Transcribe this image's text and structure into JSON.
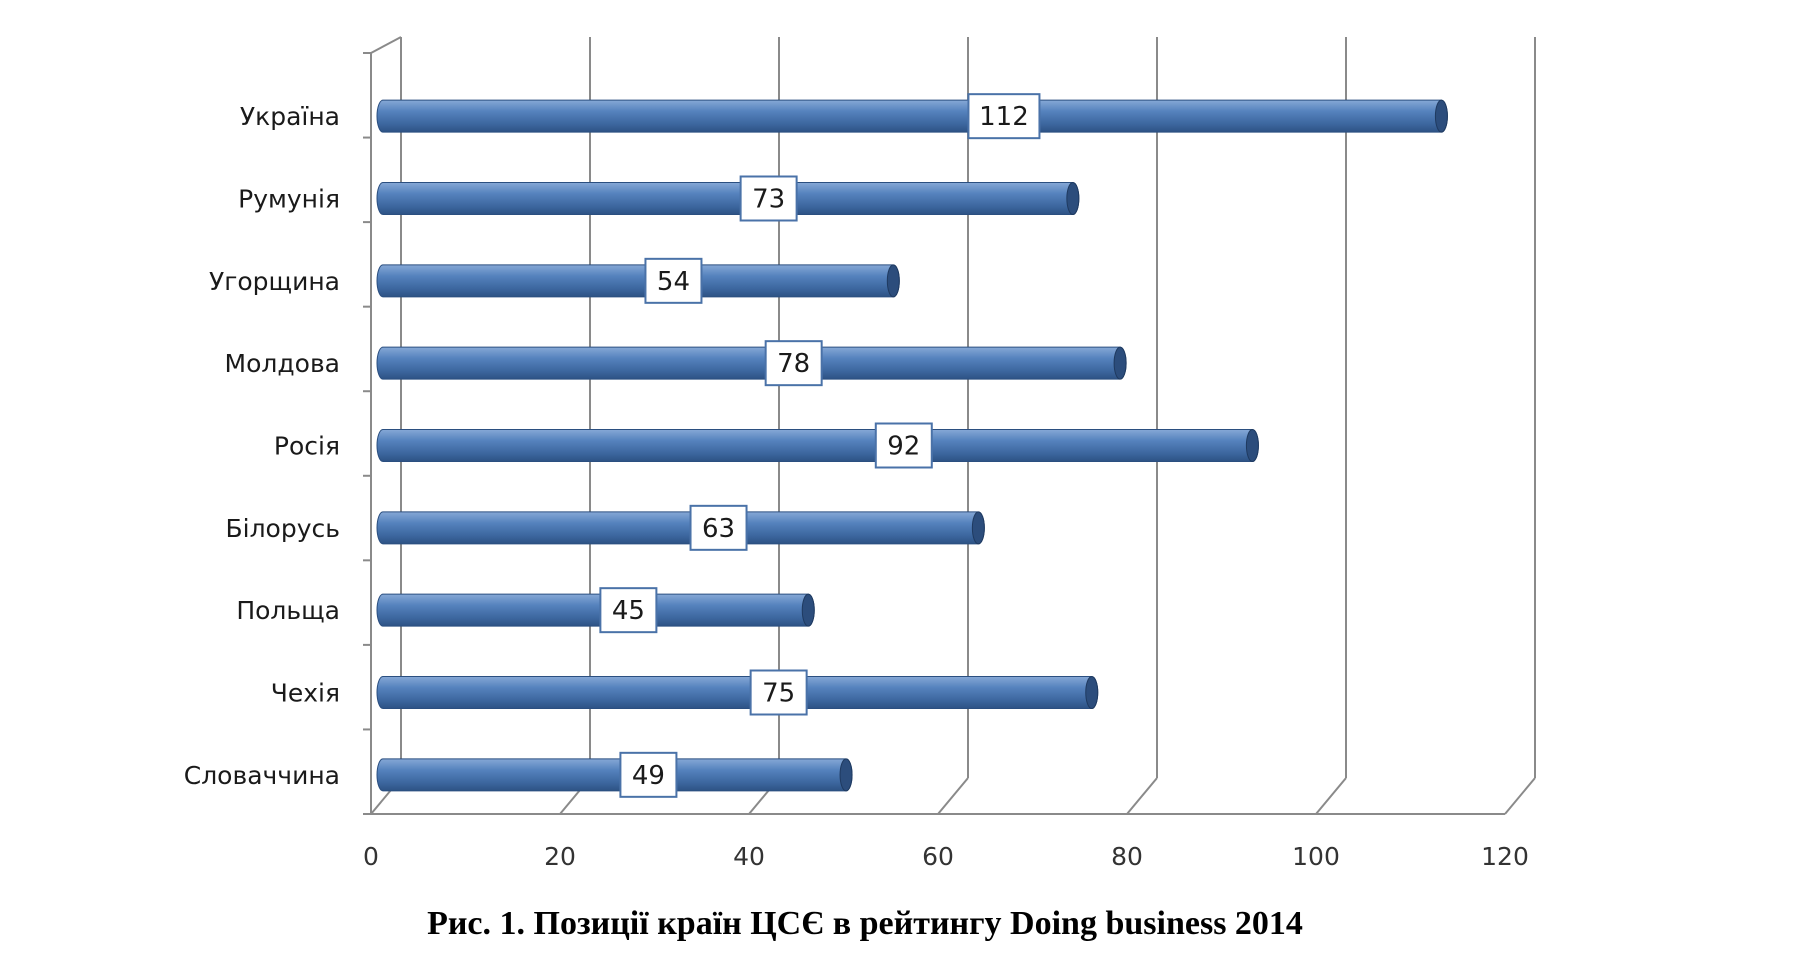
{
  "chart_data": {
    "type": "bar",
    "orientation": "horizontal",
    "style": "3d-cylinder",
    "categories": [
      "Україна",
      "Румунія",
      "Угорщина",
      "Молдова",
      "Росія",
      "Білорусь",
      "Польща",
      "Чехія",
      "Словаччина"
    ],
    "values": [
      112,
      73,
      54,
      78,
      92,
      63,
      45,
      75,
      49
    ],
    "data_labels": [
      "112",
      "73",
      "54",
      "78",
      "92",
      "63",
      "45",
      "75",
      "49"
    ],
    "x_ticks": [
      "0",
      "20",
      "40",
      "60",
      "80",
      "100",
      "120"
    ],
    "xlim": [
      0,
      120
    ],
    "grid": true,
    "legend": "none",
    "bar_color": "#4a72a8"
  },
  "caption": "Рис. 1. Позиції країн ЦСЄ в рейтингу Doing business 2014"
}
